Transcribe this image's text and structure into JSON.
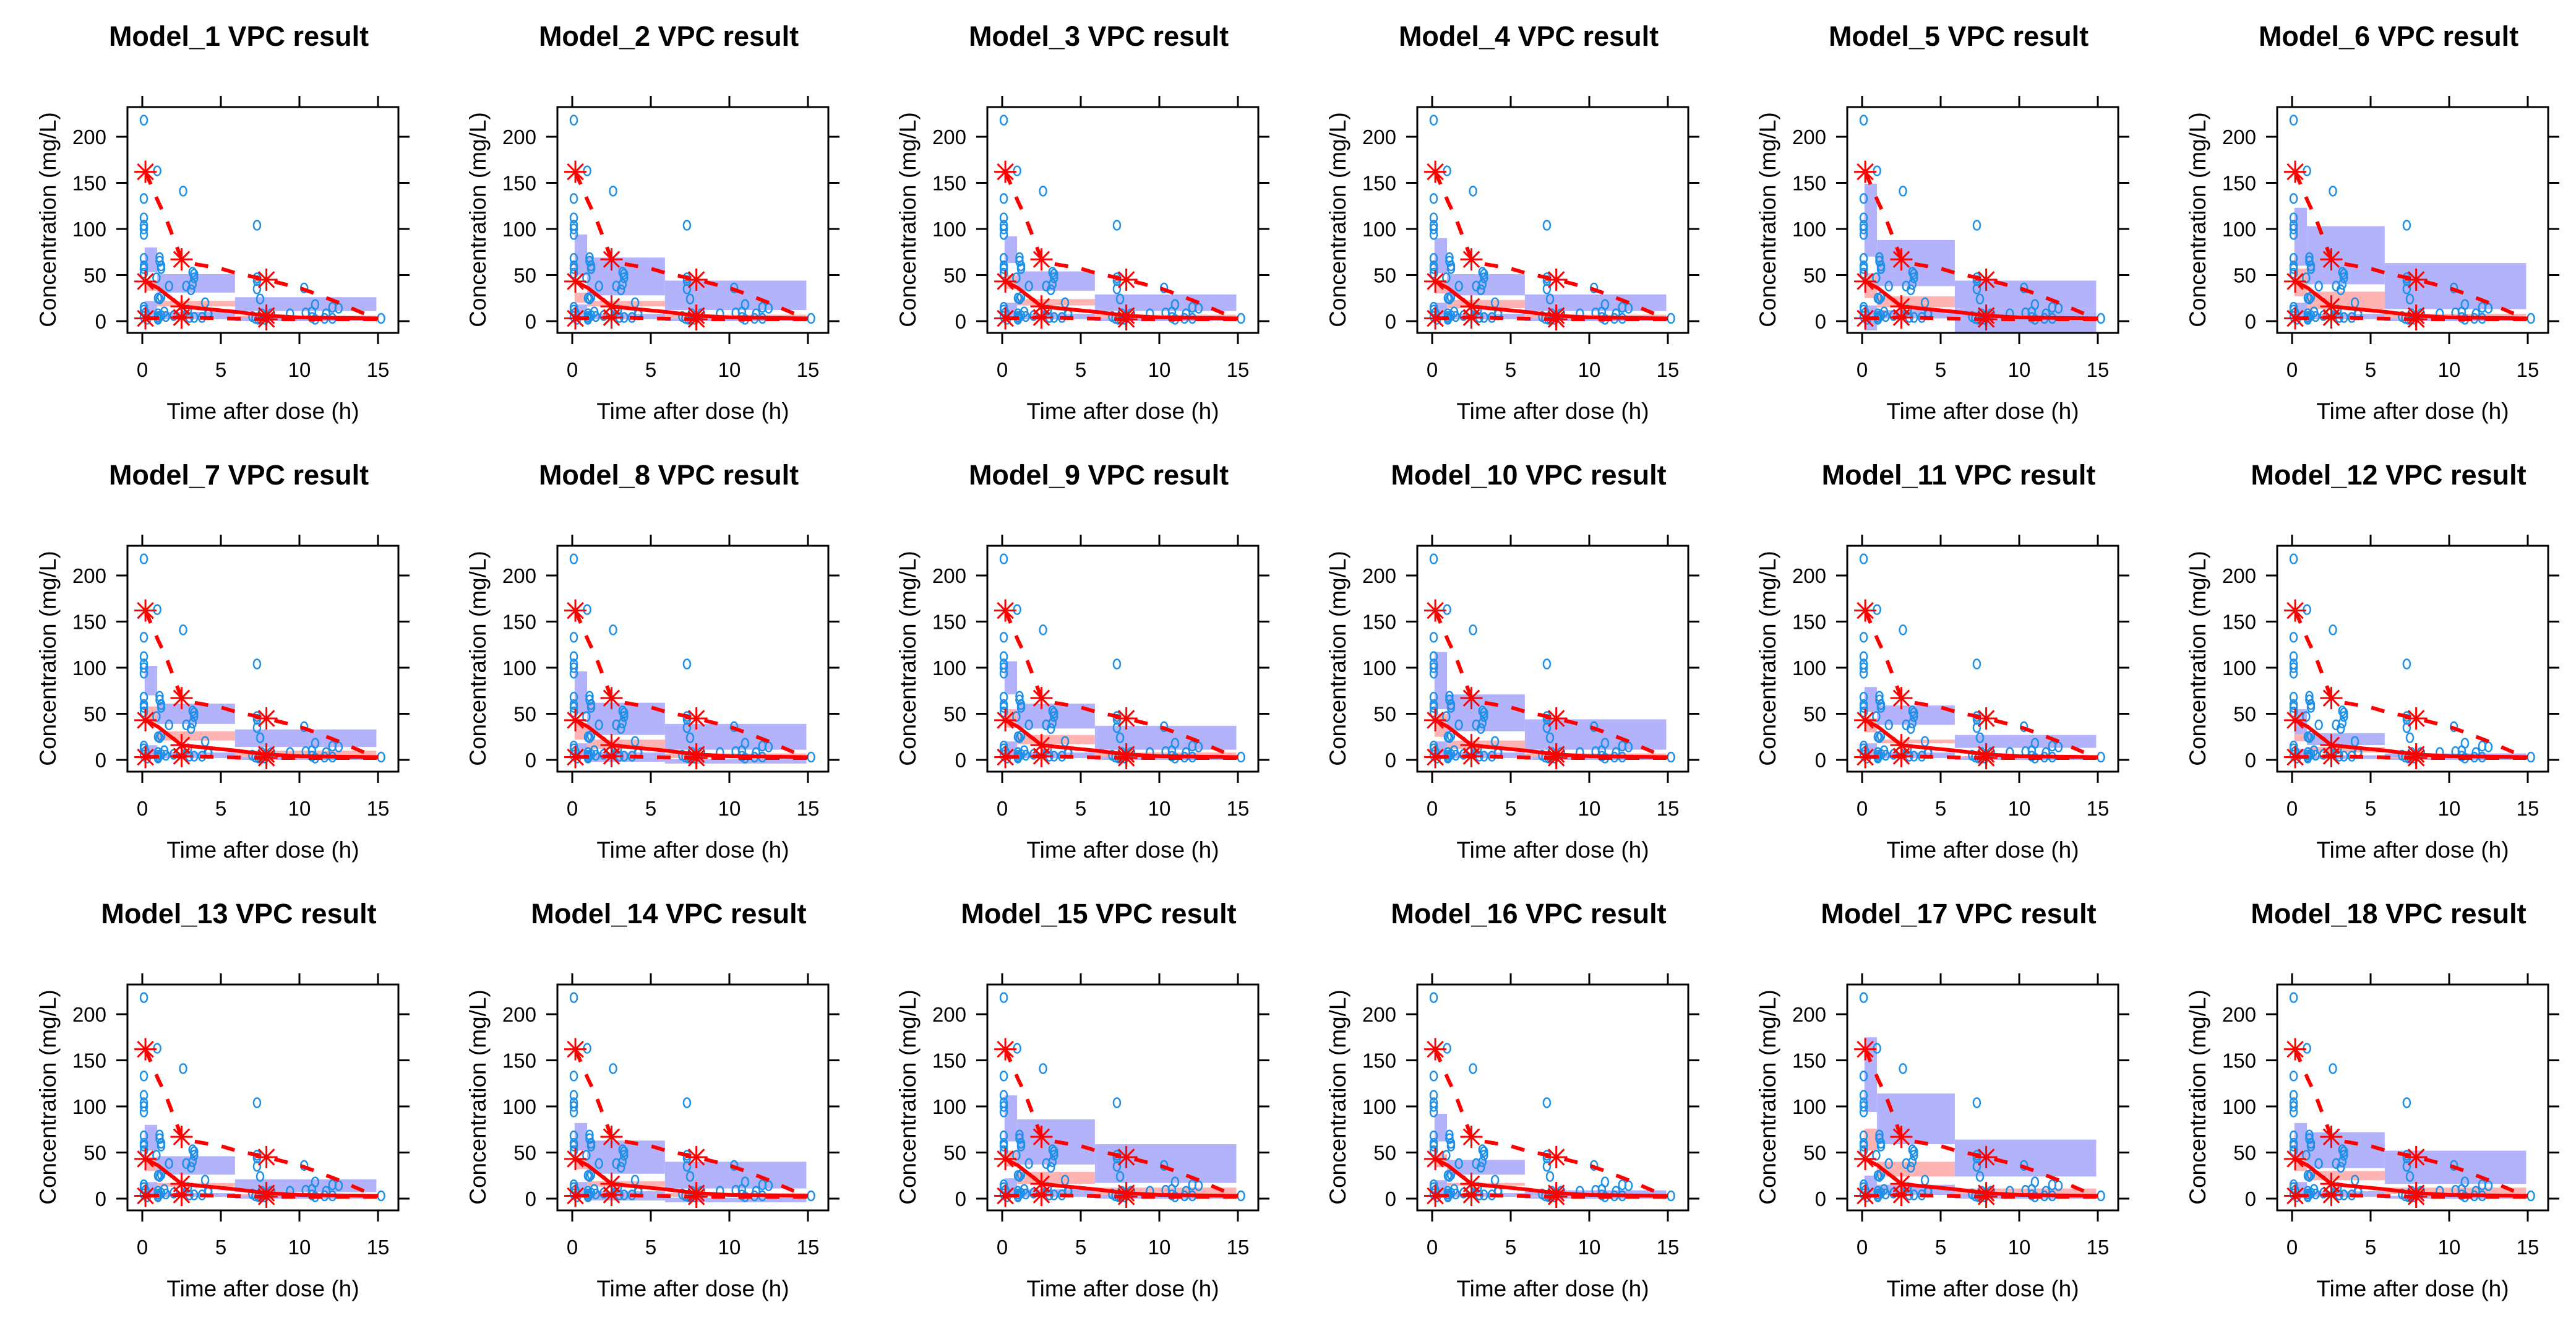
{
  "colors": {
    "observed": "#1e90e8",
    "percentile": "#ff0000",
    "ci_outer": "#b3b3fb",
    "ci_median": "#ffb3b3"
  },
  "chart_data": {
    "type": "scatter",
    "layout": "6 columns x 3 rows grid of VPC panels",
    "xlabel": "Time after dose (h)",
    "ylabel": "Concentration (mg/L)",
    "xlim": [
      -0.8,
      16.6
    ],
    "ylim": [
      -15,
      232
    ],
    "xticks": [
      "0",
      "5",
      "10",
      "15"
    ],
    "yticks": [
      "0",
      "50",
      "100",
      "150",
      "200"
    ],
    "bins": [
      [
        0.15,
        0.95
      ],
      [
        0.95,
        5.9
      ],
      [
        5.9,
        14.9
      ]
    ],
    "observed_points": [
      [
        0.1,
        218
      ],
      [
        0.95,
        163
      ],
      [
        2.6,
        141
      ],
      [
        0.1,
        133
      ],
      [
        0.1,
        112
      ],
      [
        0.1,
        104
      ],
      [
        0.1,
        100
      ],
      [
        0.1,
        94
      ],
      [
        7.3,
        104
      ],
      [
        0.1,
        68
      ],
      [
        0.1,
        60
      ],
      [
        0.1,
        57
      ],
      [
        0.1,
        52
      ],
      [
        1.1,
        69
      ],
      [
        1.1,
        65
      ],
      [
        1.2,
        60
      ],
      [
        1.2,
        57
      ],
      [
        0.9,
        47
      ],
      [
        1.7,
        38
      ],
      [
        2.8,
        38
      ],
      [
        3.1,
        34
      ],
      [
        3.2,
        40
      ],
      [
        3.3,
        47
      ],
      [
        3.3,
        51
      ],
      [
        3.2,
        53
      ],
      [
        7.3,
        47
      ],
      [
        7.3,
        44
      ],
      [
        7.3,
        35
      ],
      [
        7.5,
        24
      ],
      [
        10.3,
        36
      ],
      [
        11,
        18
      ],
      [
        12.1,
        15
      ],
      [
        12.5,
        14
      ],
      [
        4,
        20
      ],
      [
        1,
        25
      ],
      [
        1.1,
        24
      ],
      [
        1.2,
        26
      ],
      [
        0.1,
        15
      ],
      [
        0.1,
        12
      ],
      [
        0.2,
        9
      ],
      [
        1,
        8
      ],
      [
        1,
        5
      ],
      [
        1,
        3
      ],
      [
        1.2,
        6
      ],
      [
        1.4,
        10
      ],
      [
        1.5,
        5
      ],
      [
        2,
        6
      ],
      [
        2.4,
        8
      ],
      [
        3,
        4
      ],
      [
        3.3,
        4
      ],
      [
        3.8,
        4
      ],
      [
        4.2,
        9
      ],
      [
        4.2,
        7
      ],
      [
        7,
        5
      ],
      [
        7.2,
        3
      ],
      [
        7.4,
        2
      ],
      [
        7.6,
        8
      ],
      [
        8.2,
        8
      ],
      [
        9.4,
        8
      ],
      [
        10.4,
        9
      ],
      [
        10.8,
        4
      ],
      [
        11,
        2
      ],
      [
        11.6,
        3
      ],
      [
        11.7,
        8
      ],
      [
        12.1,
        3
      ],
      [
        15.2,
        3
      ],
      [
        0.1,
        5
      ],
      [
        0.3,
        2
      ],
      [
        1,
        2
      ],
      [
        2.9,
        12
      ],
      [
        7.8,
        2
      ],
      [
        10.8,
        10
      ]
    ],
    "observed_p95": [
      [
        0.2,
        162
      ],
      [
        0.5,
        150
      ],
      [
        1,
        130
      ],
      [
        1.5,
        112
      ],
      [
        2.5,
        67
      ],
      [
        3,
        63
      ],
      [
        5,
        57
      ],
      [
        6,
        52
      ],
      [
        7.9,
        45
      ],
      [
        10,
        36
      ],
      [
        11,
        30
      ],
      [
        12.5,
        20
      ],
      [
        14,
        9
      ],
      [
        15,
        3
      ]
    ],
    "observed_p50": [
      [
        0.2,
        43
      ],
      [
        1,
        36
      ],
      [
        2.5,
        16
      ],
      [
        3,
        15
      ],
      [
        6,
        10
      ],
      [
        7.9,
        6
      ],
      [
        10,
        4
      ],
      [
        15,
        3
      ]
    ],
    "observed_p5": [
      [
        0.2,
        3
      ],
      [
        2.5,
        4
      ],
      [
        7.9,
        2
      ],
      [
        15,
        2
      ]
    ],
    "star_times": [
      0.2,
      2.5,
      7.9
    ],
    "panels": [
      {
        "title": "Model_1 VPC result",
        "p95_ci": [
          [
            53,
            80
          ],
          [
            31,
            51
          ],
          [
            11,
            26
          ]
        ],
        "p50_ci": [
          [
            33,
            43
          ],
          [
            16,
            22
          ],
          [
            2,
            6
          ]
        ],
        "p5_ci": [
          [
            2,
            22
          ],
          [
            2,
            10
          ],
          [
            0,
            4
          ]
        ]
      },
      {
        "title": "Model_2 VPC result",
        "p95_ci": [
          [
            50,
            94
          ],
          [
            28,
            69
          ],
          [
            12,
            44
          ]
        ],
        "p50_ci": [
          [
            20,
            31
          ],
          [
            16,
            22
          ],
          [
            2,
            7
          ]
        ],
        "p5_ci": [
          [
            2,
            18
          ],
          [
            2,
            8
          ],
          [
            0,
            3
          ]
        ]
      },
      {
        "title": "Model_3 VPC result",
        "p95_ci": [
          [
            63,
            92
          ],
          [
            33,
            54
          ],
          [
            11,
            29
          ]
        ],
        "p50_ci": [
          [
            35,
            50
          ],
          [
            17,
            24
          ],
          [
            2,
            7
          ]
        ],
        "p5_ci": [
          [
            2,
            20
          ],
          [
            2,
            8
          ],
          [
            0,
            3
          ]
        ]
      },
      {
        "title": "Model_4 VPC result",
        "p95_ci": [
          [
            52,
            90
          ],
          [
            28,
            51
          ],
          [
            11,
            29
          ]
        ],
        "p50_ci": [
          [
            30,
            45
          ],
          [
            14,
            23
          ],
          [
            2,
            7
          ]
        ],
        "p5_ci": [
          [
            2,
            20
          ],
          [
            2,
            8
          ],
          [
            0,
            3
          ]
        ]
      },
      {
        "title": "Model_5 VPC result",
        "p95_ci": [
          [
            70,
            149
          ],
          [
            38,
            88
          ],
          [
            14,
            44
          ]
        ],
        "p50_ci": [
          [
            25,
            52
          ],
          [
            15,
            27
          ],
          [
            3,
            10
          ]
        ],
        "p5_ci": [
          [
            -10,
            17
          ],
          [
            3,
            12
          ],
          [
            -12,
            14
          ]
        ]
      },
      {
        "title": "Model_6 VPC result",
        "p95_ci": [
          [
            60,
            123
          ],
          [
            40,
            103
          ],
          [
            13,
            63
          ]
        ],
        "p50_ci": [
          [
            27,
            57
          ],
          [
            13,
            32
          ],
          [
            2,
            8
          ]
        ],
        "p5_ci": [
          [
            2,
            20
          ],
          [
            2,
            8
          ],
          [
            0,
            3
          ]
        ]
      },
      {
        "title": "Model_7 VPC result",
        "p95_ci": [
          [
            70,
            102
          ],
          [
            39,
            61
          ],
          [
            14,
            33
          ]
        ],
        "p50_ci": [
          [
            40,
            58
          ],
          [
            21,
            31
          ],
          [
            3,
            10
          ]
        ],
        "p5_ci": [
          [
            4,
            16
          ],
          [
            2,
            8
          ],
          [
            0,
            3
          ]
        ]
      },
      {
        "title": "Model_8 VPC result",
        "p95_ci": [
          [
            50,
            96
          ],
          [
            27,
            62
          ],
          [
            11,
            39
          ]
        ],
        "p50_ci": [
          [
            22,
            40
          ],
          [
            12,
            22
          ],
          [
            2,
            7
          ]
        ],
        "p5_ci": [
          [
            2,
            18
          ],
          [
            -2,
            8
          ],
          [
            -4,
            1
          ]
        ]
      },
      {
        "title": "Model_9 VPC result",
        "p95_ci": [
          [
            71,
            107
          ],
          [
            34,
            61
          ],
          [
            11,
            37
          ]
        ],
        "p50_ci": [
          [
            35,
            55
          ],
          [
            17,
            27
          ],
          [
            2,
            8
          ]
        ],
        "p5_ci": [
          [
            2,
            20
          ],
          [
            2,
            8
          ],
          [
            0,
            3
          ]
        ]
      },
      {
        "title": "Model_10 VPC result",
        "p95_ci": [
          [
            55,
            117
          ],
          [
            31,
            71
          ],
          [
            11,
            44
          ]
        ],
        "p50_ci": [
          [
            25,
            50
          ],
          [
            12,
            21
          ],
          [
            2,
            7
          ]
        ],
        "p5_ci": [
          [
            2,
            20
          ],
          [
            2,
            8
          ],
          [
            0,
            3
          ]
        ]
      },
      {
        "title": "Model_11 VPC result",
        "p95_ci": [
          [
            52,
            79
          ],
          [
            38,
            59
          ],
          [
            13,
            27
          ]
        ],
        "p50_ci": [
          [
            30,
            45
          ],
          [
            18,
            22
          ],
          [
            2,
            4
          ]
        ],
        "p5_ci": [
          [
            2,
            18
          ],
          [
            2,
            8
          ],
          [
            0,
            3
          ]
        ]
      },
      {
        "title": "Model_12 VPC result",
        "p95_ci": [
          [
            25,
            55
          ],
          [
            16,
            29
          ],
          [
            1,
            7
          ]
        ],
        "p50_ci": [
          [
            20,
            28
          ],
          [
            8,
            14
          ],
          [
            0,
            3
          ]
        ],
        "p5_ci": [
          [
            2,
            12
          ],
          [
            1,
            5
          ],
          [
            0,
            2
          ]
        ]
      },
      {
        "title": "Model_13 VPC result",
        "p95_ci": [
          [
            52,
            80
          ],
          [
            26,
            46
          ],
          [
            7,
            21
          ]
        ],
        "p50_ci": [
          [
            30,
            45
          ],
          [
            13,
            17
          ],
          [
            2,
            5
          ]
        ],
        "p5_ci": [
          [
            2,
            18
          ],
          [
            2,
            6
          ],
          [
            0,
            3
          ]
        ]
      },
      {
        "title": "Model_14 VPC result",
        "p95_ci": [
          [
            52,
            82
          ],
          [
            27,
            63
          ],
          [
            11,
            40
          ]
        ],
        "p50_ci": [
          [
            32,
            44
          ],
          [
            13,
            19
          ],
          [
            2,
            6
          ]
        ],
        "p5_ci": [
          [
            2,
            18
          ],
          [
            -2,
            8
          ],
          [
            -4,
            1
          ]
        ]
      },
      {
        "title": "Model_15 VPC result",
        "p95_ci": [
          [
            62,
            112
          ],
          [
            37,
            86
          ],
          [
            17,
            59
          ]
        ],
        "p50_ci": [
          [
            35,
            52
          ],
          [
            16,
            29
          ],
          [
            3,
            12
          ]
        ],
        "p5_ci": [
          [
            2,
            22
          ],
          [
            2,
            10
          ],
          [
            0,
            4
          ]
        ]
      },
      {
        "title": "Model_16 VPC result",
        "p95_ci": [
          [
            62,
            92
          ],
          [
            26,
            42
          ],
          [
            3,
            9
          ]
        ],
        "p50_ci": [
          [
            34,
            48
          ],
          [
            14,
            17
          ],
          [
            0,
            3
          ]
        ],
        "p5_ci": [
          [
            2,
            20
          ],
          [
            2,
            6
          ],
          [
            0,
            2
          ]
        ]
      },
      {
        "title": "Model_17 VPC result",
        "p95_ci": [
          [
            94,
            175
          ],
          [
            59,
            114
          ],
          [
            24,
            64
          ]
        ],
        "p50_ci": [
          [
            52,
            76
          ],
          [
            24,
            40
          ],
          [
            4,
            11
          ]
        ],
        "p5_ci": [
          [
            2,
            25
          ],
          [
            4,
            15
          ],
          [
            0,
            5
          ]
        ]
      },
      {
        "title": "Model_18 VPC result",
        "p95_ci": [
          [
            40,
            82
          ],
          [
            33,
            72
          ],
          [
            16,
            52
          ]
        ],
        "p50_ci": [
          [
            30,
            45
          ],
          [
            20,
            30
          ],
          [
            5,
            12
          ]
        ],
        "p5_ci": [
          [
            2,
            18
          ],
          [
            2,
            8
          ],
          [
            0,
            3
          ]
        ]
      }
    ]
  }
}
